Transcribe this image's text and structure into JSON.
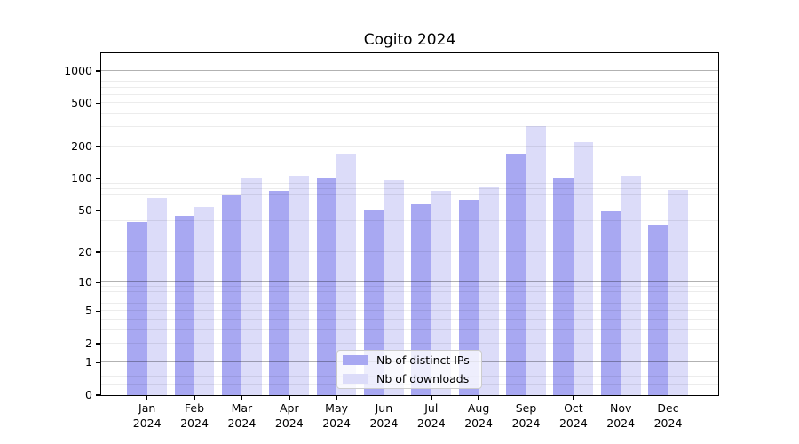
{
  "title": "Cogito 2024",
  "chart_data": {
    "type": "bar",
    "title": "Cogito 2024",
    "categories": [
      "Jan 2024",
      "Feb 2024",
      "Mar 2024",
      "Apr 2024",
      "May 2024",
      "Jun 2024",
      "Jul 2024",
      "Aug 2024",
      "Sep 2024",
      "Oct 2024",
      "Nov 2024",
      "Dec 2024"
    ],
    "series": [
      {
        "name": "Nb of distinct IPs",
        "color": "#a8a8f2",
        "values": [
          39,
          45,
          70,
          77,
          100,
          50,
          58,
          63,
          172,
          100,
          49,
          37
        ]
      },
      {
        "name": "Nb of downloads",
        "color": "#dcdcf9",
        "values": [
          66,
          54,
          100,
          107,
          170,
          96,
          77,
          83,
          310,
          220,
          107,
          78
        ]
      }
    ],
    "xlabel": "",
    "ylabel": "",
    "yscale": "log1p",
    "ylim": [
      0,
      1440
    ],
    "y_tick_values": [
      0,
      1,
      2,
      5,
      10,
      20,
      50,
      100,
      200,
      500,
      1000
    ],
    "y_tick_labels": [
      "0",
      "1",
      "2",
      "5",
      "10",
      "20",
      "50",
      "100",
      "200",
      "500",
      "1000"
    ],
    "y_major_gridlines": [
      1,
      10,
      100,
      1000
    ],
    "y_minor_gridlines": [
      0.25,
      0.5,
      2,
      3,
      4,
      5,
      6,
      7,
      8,
      9,
      20,
      30,
      40,
      50,
      60,
      70,
      80,
      90,
      200,
      300,
      400,
      500,
      600,
      700,
      800,
      900
    ],
    "grid": true,
    "legend_position": "lower center"
  },
  "legend": {
    "items": [
      {
        "label": "Nb of distinct IPs"
      },
      {
        "label": "Nb of downloads"
      }
    ]
  }
}
